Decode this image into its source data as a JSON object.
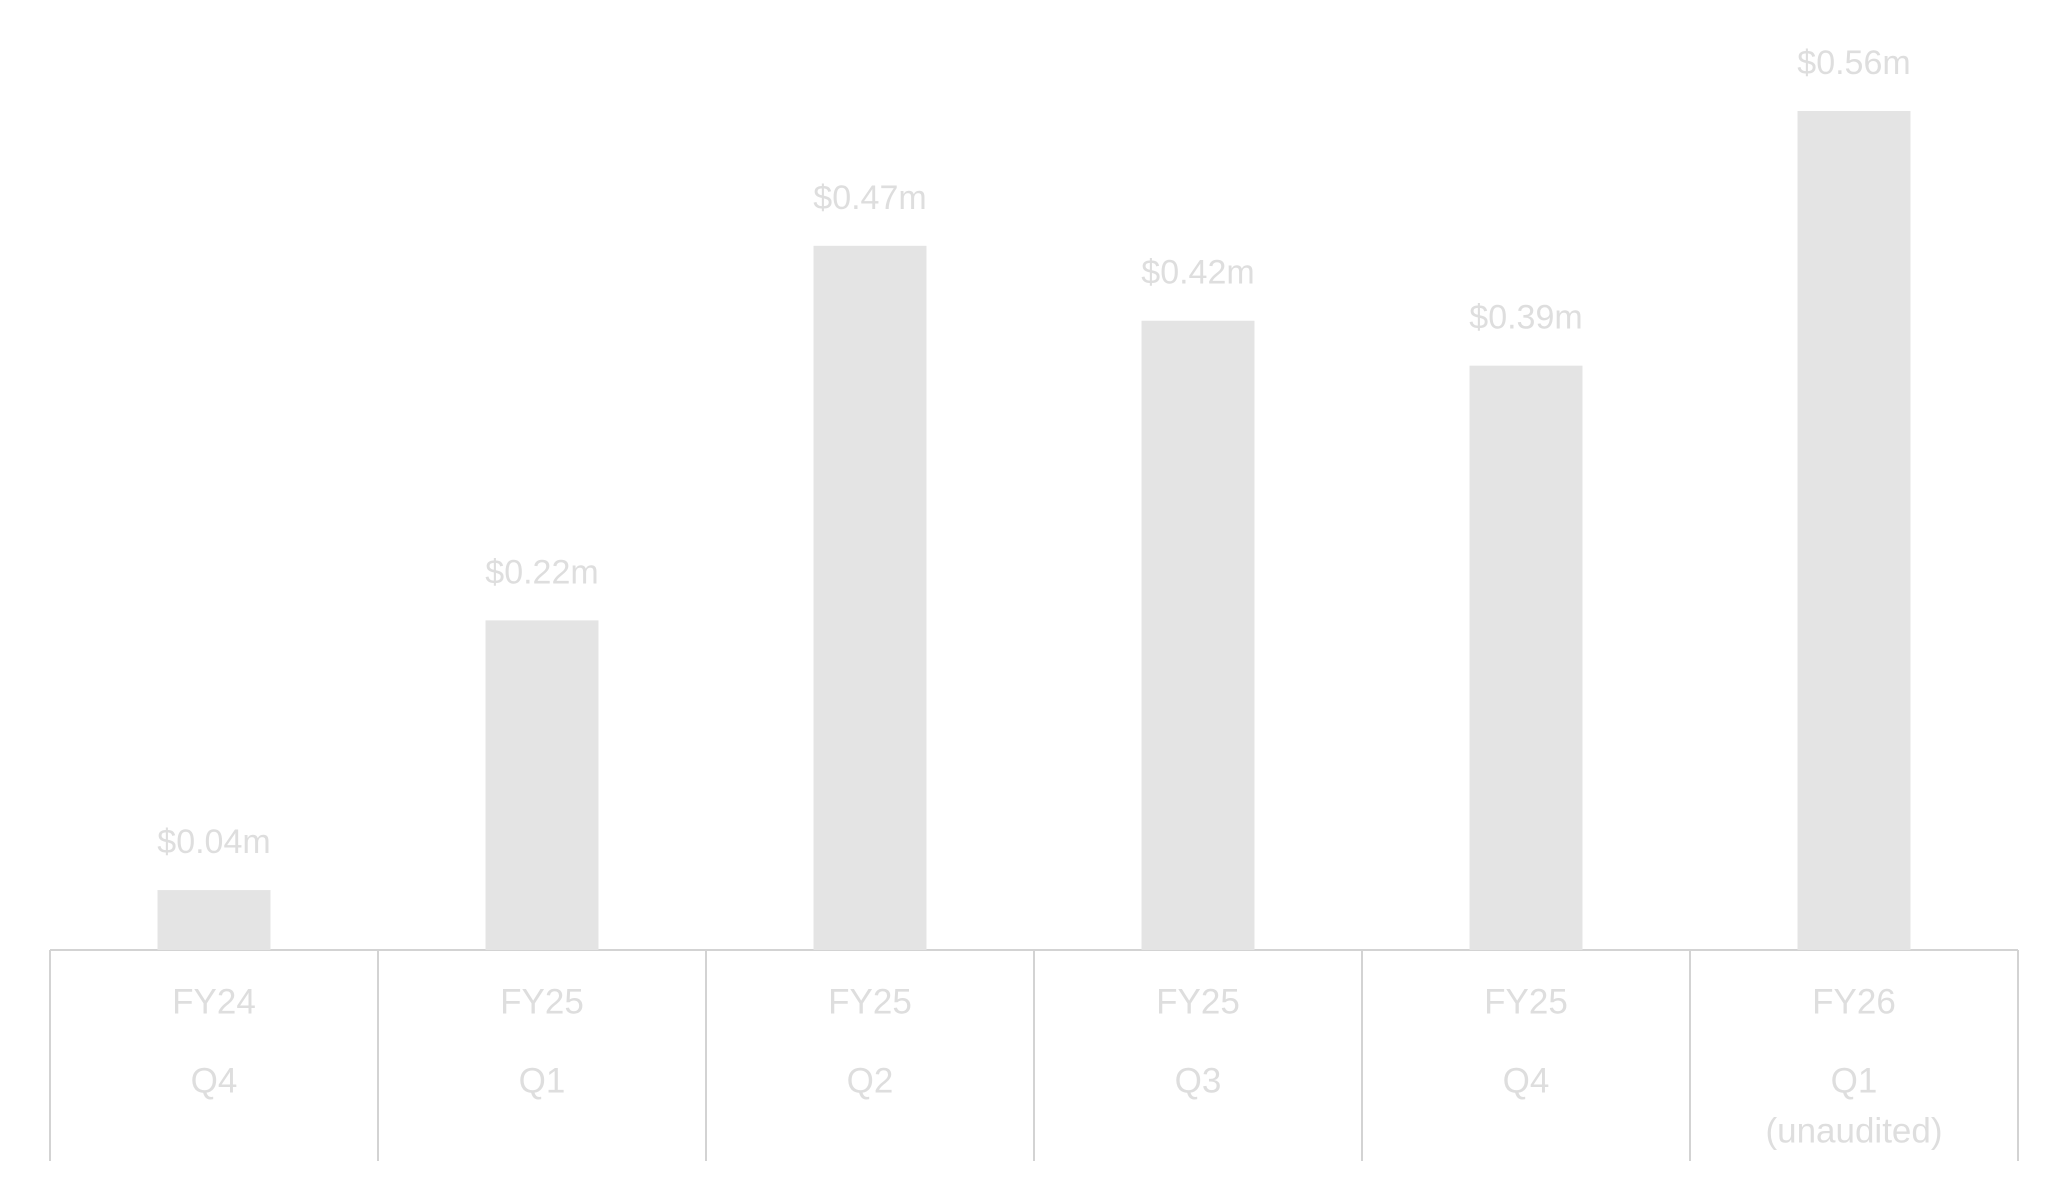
{
  "chart_data": {
    "type": "bar",
    "categories": [
      [
        "FY24",
        "Q4"
      ],
      [
        "FY25",
        "Q1"
      ],
      [
        "FY25",
        "Q2"
      ],
      [
        "FY25",
        "Q3"
      ],
      [
        "FY25",
        "Q4"
      ],
      [
        "FY26",
        "Q1",
        "(unaudited)"
      ]
    ],
    "values": [
      0.04,
      0.22,
      0.47,
      0.42,
      0.39,
      0.56
    ],
    "value_labels": [
      "$0.04m",
      "$0.22m",
      "$0.47m",
      "$0.42m",
      "$0.39m",
      "$0.56m"
    ],
    "color": "#e4e4e4"
  }
}
